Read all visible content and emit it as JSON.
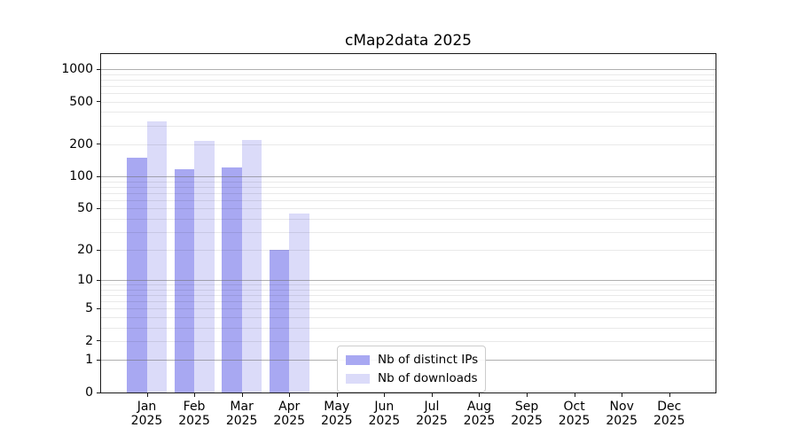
{
  "chart_data": {
    "type": "bar",
    "title": "cMap2data 2025",
    "categories": [
      "Jan",
      "Feb",
      "Mar",
      "Apr",
      "May",
      "Jun",
      "Jul",
      "Aug",
      "Sep",
      "Oct",
      "Nov",
      "Dec"
    ],
    "year": "2025",
    "series": [
      {
        "name": "Nb of distinct IPs",
        "color": "#a8a8f2",
        "values": [
          150,
          118,
          121,
          20,
          0,
          0,
          0,
          0,
          0,
          0,
          0,
          0
        ]
      },
      {
        "name": "Nb of downloads",
        "color": "#dbdbf9",
        "values": [
          330,
          215,
          220,
          45,
          0,
          0,
          0,
          0,
          0,
          0,
          0,
          0
        ]
      }
    ],
    "xlabel": "",
    "ylabel": "",
    "y_scale": "log10(value+1)",
    "y_ticks": [
      0,
      1,
      2,
      5,
      10,
      20,
      50,
      100,
      200,
      500,
      1000
    ],
    "ylim": [
      0,
      1430
    ],
    "grid": "horizontal major and minor, drawn over bars",
    "legend_position": "inside bottom center",
    "colors": {
      "major_grid": "#6e6e6e",
      "minor_grid": "#e8e8e8",
      "spine": "#1a1a1a",
      "legend_border": "#cccccc",
      "background": "#ffffff"
    }
  }
}
